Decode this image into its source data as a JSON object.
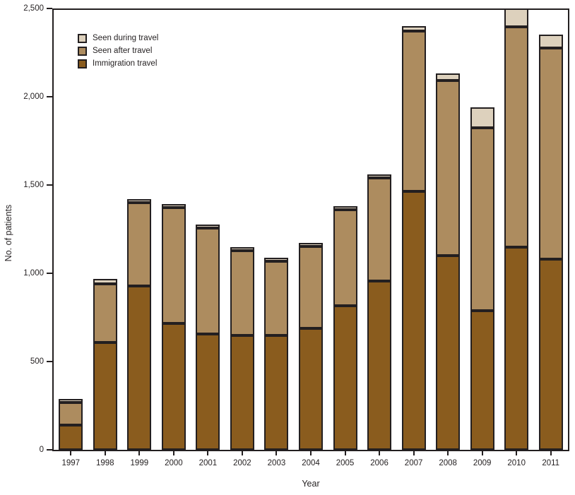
{
  "figure": {
    "background": "#ffffff",
    "ink_color": "#231f20"
  },
  "chart_data": {
    "type": "bar",
    "stacked": true,
    "title": "",
    "xlabel": "Year",
    "ylabel": "No. of patients",
    "ylim": [
      0,
      2500
    ],
    "grid": false,
    "legend_position": "top-left-inside",
    "ytick_values": [
      0,
      500,
      1000,
      1500,
      2000,
      2500
    ],
    "ytick_labels": [
      "0",
      "500",
      "1,000",
      "1,500",
      "2,000",
      "2,500"
    ],
    "categories": [
      "1997",
      "1998",
      "1999",
      "2000",
      "2001",
      "2002",
      "2003",
      "2004",
      "2005",
      "2006",
      "2007",
      "2008",
      "2009",
      "2010",
      "2011"
    ],
    "series": [
      {
        "name": "Immigration travel",
        "color": "#8a5c1e",
        "values": [
          140,
          610,
          930,
          720,
          660,
          650,
          650,
          690,
          820,
          960,
          1470,
          1105,
          790,
          1150,
          1085
        ]
      },
      {
        "name": "Seen after travel",
        "color": "#ad8c5f",
        "values": [
          130,
          335,
          475,
          660,
          600,
          480,
          420,
          465,
          545,
          585,
          910,
          995,
          1040,
          1250,
          1200
        ]
      },
      {
        "name": "Seen during travel",
        "color": "#ddd1bd",
        "values": [
          20,
          30,
          20,
          15,
          8,
          15,
          15,
          10,
          10,
          20,
          30,
          40,
          115,
          115,
          75
        ]
      }
    ],
    "legend_order_top_to_bottom": [
      "Seen during travel",
      "Seen after travel",
      "Immigration travel"
    ]
  }
}
